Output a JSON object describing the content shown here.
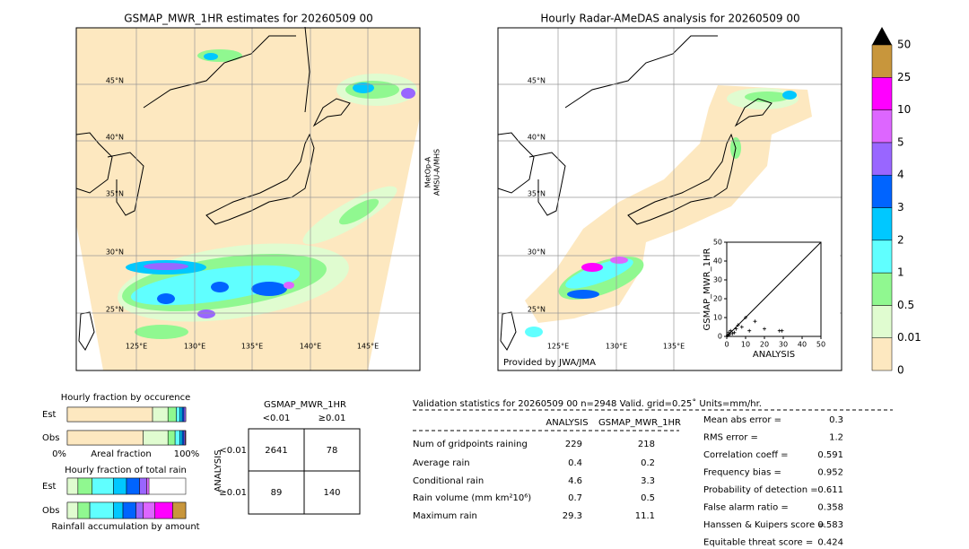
{
  "map1": {
    "title": "GSMAP_MWR_1HR estimates for 20260509 00",
    "lat_labels": [
      "45°N",
      "40°N",
      "35°N",
      "30°N",
      "25°N"
    ],
    "lon_labels": [
      "125°E",
      "130°E",
      "135°E",
      "140°E",
      "145°E"
    ],
    "satellite": [
      "MetOp-A",
      "AMSU-A/MHS"
    ]
  },
  "map2": {
    "title": "Hourly Radar-AMeDAS analysis for 20260509 00",
    "lat_labels": [
      "45°N",
      "40°N",
      "35°N",
      "30°N",
      "25°N"
    ],
    "lon_labels": [
      "125°E",
      "130°E",
      "135°E"
    ],
    "credit": "Provided by JWA/JMA"
  },
  "chart_data": {
    "type": "scatter",
    "xlabel": "ANALYSIS",
    "ylabel": "GSMAP_MWR_1HR",
    "xlim": [
      0,
      50
    ],
    "ylim": [
      0,
      50
    ],
    "xticks": [
      0,
      10,
      20,
      30,
      40,
      50
    ],
    "yticks": [
      0,
      10,
      20,
      30,
      40,
      50
    ],
    "x": [
      0.5,
      1,
      1.5,
      2,
      3,
      4,
      5,
      6,
      8,
      10,
      12,
      15,
      20,
      28,
      29.3
    ],
    "y": [
      0.5,
      2,
      1,
      3,
      1.5,
      2,
      4,
      6,
      5,
      10,
      3,
      8,
      4,
      3,
      3
    ],
    "color": "#000000"
  },
  "colorbar": {
    "labels": [
      "0",
      "0.01",
      "0.5",
      "1",
      "2",
      "3",
      "4",
      "5",
      "10",
      "25",
      "50"
    ],
    "colors": [
      "#fde8c0",
      "#e0fcd0",
      "#90f890",
      "#60ffff",
      "#00c8ff",
      "#0064ff",
      "#9966ff",
      "#dd66ff",
      "#ff00ff",
      "#c8963c"
    ]
  },
  "fractions": {
    "occurrence_title": "Hourly fraction by occurence",
    "total_title": "Hourly fraction of total rain",
    "rows": [
      "Est",
      "Obs"
    ],
    "axis": [
      "0%",
      "Areal fraction",
      "100%"
    ],
    "xlabel": "Rainfall accumulation by amount",
    "occurrence": [
      [
        72,
        13,
        7,
        3,
        2,
        1.5,
        1.5,
        0,
        0,
        0
      ],
      [
        64,
        21,
        6,
        4,
        2,
        1.5,
        1,
        0.5,
        0,
        0
      ]
    ],
    "total": [
      [
        0,
        9,
        12,
        18,
        11,
        11,
        6,
        2,
        0,
        0
      ],
      [
        0,
        9,
        10,
        20,
        8,
        11,
        6,
        10,
        15,
        11
      ]
    ]
  },
  "contingency": {
    "title": "GSMAP_MWR_1HR",
    "cols": [
      "<0.01",
      "≥0.01"
    ],
    "row_title": "ANALYSIS",
    "rows": [
      "<0.01",
      "≥0.01"
    ],
    "cells": [
      [
        2641,
        78
      ],
      [
        89,
        140
      ]
    ]
  },
  "stats": {
    "header": "Validation statistics for 20260509 00  n=2948 Valid. grid=0.25˚ Units=mm/hr.",
    "cols": [
      "ANALYSIS",
      "GSMAP_MWR_1HR"
    ],
    "rows": [
      {
        "label": "Num of gridpoints raining",
        "values": [
          229,
          218
        ]
      },
      {
        "label": "Average rain",
        "values": [
          0.4,
          0.2
        ]
      },
      {
        "label": "Conditional rain",
        "values": [
          4.6,
          3.3
        ]
      },
      {
        "label": "Rain volume (mm km²10⁶)",
        "values": [
          0.7,
          0.5
        ]
      },
      {
        "label": "Maximum rain",
        "values": [
          29.3,
          11.1
        ]
      }
    ]
  },
  "scores": [
    {
      "label": "Mean abs error =",
      "value": 0.3
    },
    {
      "label": "RMS error =",
      "value": 1.2
    },
    {
      "label": "Correlation coeff =",
      "value": 0.591
    },
    {
      "label": "Frequency bias =",
      "value": 0.952
    },
    {
      "label": "Probability of detection =",
      "value": 0.611
    },
    {
      "label": "False alarm ratio =",
      "value": 0.358
    },
    {
      "label": "Hanssen & Kuipers score =",
      "value": 0.583
    },
    {
      "label": "Equitable threat score =",
      "value": 0.424
    }
  ]
}
